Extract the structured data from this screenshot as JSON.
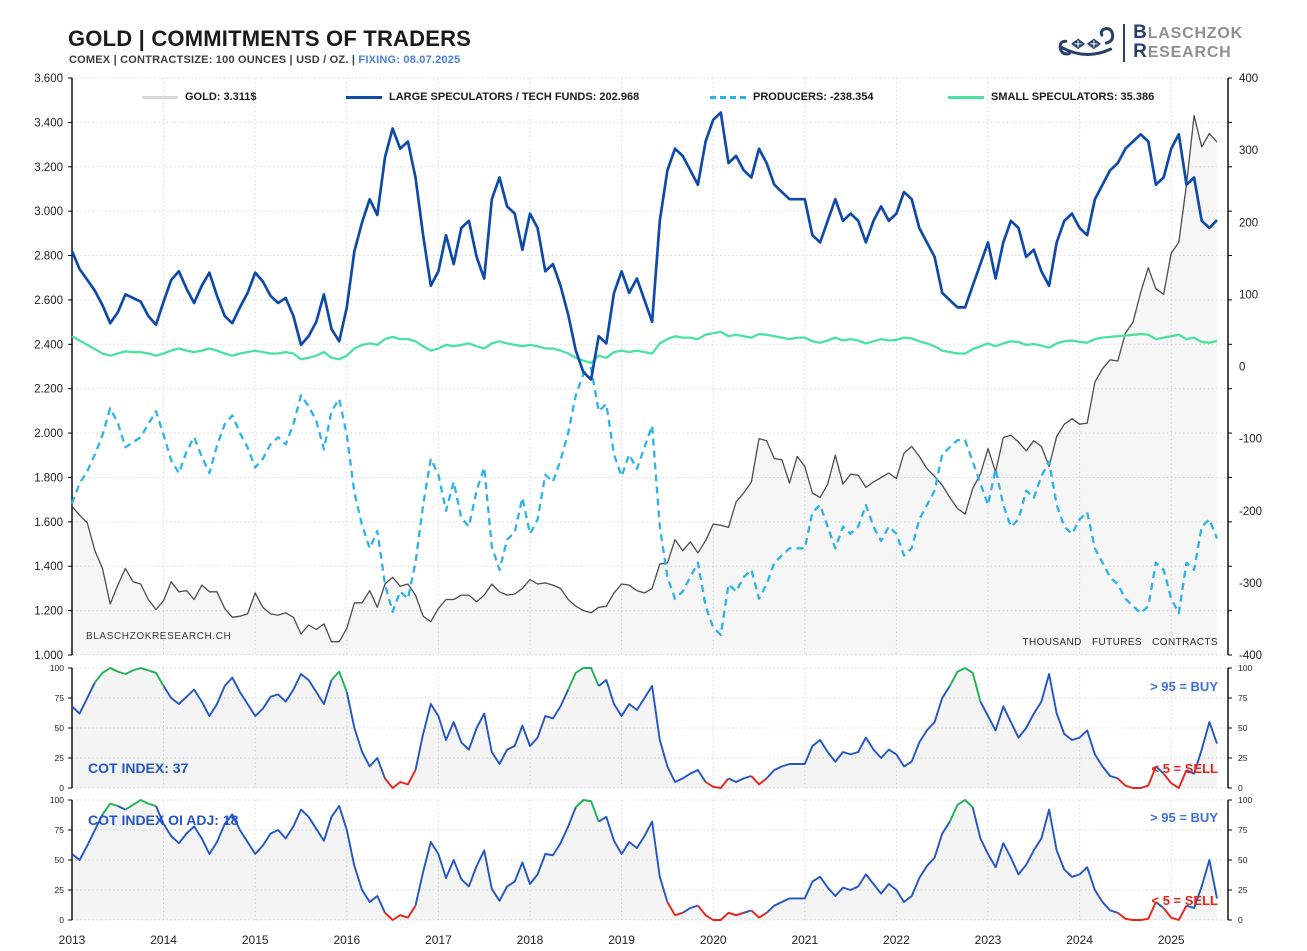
{
  "header": {
    "title": "GOLD | COMMITMENTS OF TRADERS",
    "subtitle": "COMEX | CONTRACTSIZE: 100 OUNCES | USD / OZ. |",
    "fixing": "FIXING: 08.07.2025",
    "logo_line1": "LASCHZOK",
    "logo_line2": "ESEARCH",
    "logo_init1": "B",
    "logo_init2": "R"
  },
  "colors": {
    "large_specs_blue": "#0f4aa8",
    "producers_cyan": "#2cb3ea",
    "small_specs_green": "#4ae2a2",
    "gold_grey": "#4d4d4d",
    "gold_legend_swatch": "#d8d8d8",
    "cot_blue": "#2256c3",
    "cot_green": "#1fb254",
    "cot_red": "#e8231a",
    "fixing_blue": "#4a7ce0",
    "logo_navy": "#27406e"
  },
  "legend": [
    {
      "label": "GOLD: 3.311$",
      "color": "#d8d8d8",
      "style": "solid"
    },
    {
      "label": "LARGE SPECULATORS / TECH FUNDS: 202.968",
      "color": "#0f4aa8",
      "style": "solid"
    },
    {
      "label": "PRODUCERS: -238.354",
      "color": "#2cb3ea",
      "style": "dashed"
    },
    {
      "label": "SMALL SPECULATORS: 35.386",
      "color": "#4ae2a2",
      "style": "solid"
    }
  ],
  "annotations": {
    "watermark": "BLASCHZOKRESEARCH.CH",
    "right_units": "THOUSAND FUTURES CONTRACTS",
    "cot1_label": "COT INDEX: 37",
    "cot2_label": "COT INDEX OI ADJ: 18",
    "buy_rule": "> 95 = BUY",
    "sell_rule": "< 5 = SELL"
  },
  "axes": {
    "x_years": [
      "2013",
      "2014",
      "2015",
      "2016",
      "2017",
      "2018",
      "2019",
      "2020",
      "2021",
      "2022",
      "2023",
      "2024",
      "2025"
    ],
    "main_left_ticks": [
      "3.600",
      "3.400",
      "3.200",
      "3.000",
      "2.800",
      "2.600",
      "2.400",
      "2.200",
      "2.000",
      "1.800",
      "1.600",
      "1.400",
      "1.200",
      "1.000"
    ],
    "main_right_ticks": [
      "400",
      "300",
      "200",
      "100",
      "0",
      "-100",
      "-200",
      "-300",
      "-400"
    ],
    "cot_ticks": [
      "100",
      "75",
      "50",
      "25",
      "0"
    ]
  },
  "chart_data": {
    "type": "line",
    "title": "GOLD | COMMITMENTS OF TRADERS",
    "x_start": 2013.0,
    "x_step": 0.0833333,
    "x_end": 2025.5,
    "x_tick_labels": [
      "2013",
      "2014",
      "2015",
      "2016",
      "2017",
      "2018",
      "2019",
      "2020",
      "2021",
      "2022",
      "2023",
      "2024",
      "2025"
    ],
    "grid": true,
    "legend_position": "top",
    "main": {
      "left_axis": {
        "label": "GOLD USD/OZ",
        "range": [
          1000,
          3600
        ],
        "tick_step": 200
      },
      "right_axis": {
        "label": "THOUSAND FUTURES CONTRACTS",
        "range": [
          -400,
          400
        ],
        "tick_step": 100
      },
      "series": [
        {
          "name": "GOLD",
          "axis": "left",
          "color": "#4d4d4d",
          "latest": 3311,
          "area_fill": true,
          "values": [
            1670,
            1630,
            1595,
            1470,
            1390,
            1230,
            1315,
            1390,
            1330,
            1320,
            1250,
            1205,
            1245,
            1330,
            1285,
            1290,
            1250,
            1315,
            1285,
            1285,
            1210,
            1170,
            1175,
            1185,
            1280,
            1215,
            1185,
            1180,
            1190,
            1170,
            1095,
            1135,
            1115,
            1140,
            1060,
            1060,
            1120,
            1235,
            1235,
            1290,
            1215,
            1320,
            1350,
            1310,
            1320,
            1270,
            1175,
            1150,
            1210,
            1250,
            1250,
            1270,
            1270,
            1240,
            1270,
            1320,
            1285,
            1270,
            1275,
            1300,
            1340,
            1320,
            1325,
            1315,
            1300,
            1250,
            1220,
            1200,
            1190,
            1215,
            1220,
            1280,
            1320,
            1315,
            1290,
            1280,
            1300,
            1410,
            1415,
            1520,
            1470,
            1510,
            1460,
            1515,
            1590,
            1585,
            1575,
            1690,
            1730,
            1780,
            1975,
            1965,
            1885,
            1880,
            1775,
            1895,
            1850,
            1730,
            1710,
            1770,
            1900,
            1770,
            1815,
            1810,
            1755,
            1780,
            1800,
            1820,
            1795,
            1910,
            1940,
            1895,
            1840,
            1805,
            1765,
            1710,
            1660,
            1635,
            1750,
            1815,
            1930,
            1825,
            1980,
            1990,
            1960,
            1920,
            1965,
            1940,
            1850,
            1985,
            2040,
            2065,
            2040,
            2045,
            2230,
            2290,
            2330,
            2325,
            2450,
            2500,
            2635,
            2745,
            2650,
            2625,
            2810,
            2860,
            3120,
            3430,
            3290,
            3350,
            3311
          ]
        },
        {
          "name": "LARGE SPECULATORS / TECH FUNDS",
          "axis": "right",
          "color": "#0f4aa8",
          "latest": 202.968,
          "values": [
            160,
            135,
            120,
            105,
            85,
            60,
            75,
            100,
            95,
            90,
            70,
            58,
            90,
            120,
            132,
            108,
            88,
            112,
            130,
            98,
            70,
            60,
            82,
            102,
            130,
            118,
            98,
            88,
            95,
            70,
            30,
            42,
            62,
            100,
            52,
            35,
            82,
            160,
            200,
            232,
            210,
            290,
            330,
            302,
            312,
            262,
            182,
            112,
            132,
            182,
            142,
            192,
            202,
            152,
            122,
            232,
            262,
            222,
            212,
            162,
            212,
            192,
            132,
            142,
            112,
            72,
            22,
            -8,
            -18,
            42,
            32,
            102,
            132,
            102,
            122,
            92,
            62,
            202,
            272,
            302,
            292,
            272,
            252,
            312,
            342,
            352,
            282,
            292,
            272,
            262,
            302,
            282,
            252,
            242,
            232,
            232,
            232,
            182,
            172,
            202,
            232,
            202,
            212,
            202,
            172,
            202,
            222,
            202,
            212,
            242,
            232,
            192,
            172,
            152,
            102,
            92,
            82,
            82,
            112,
            142,
            172,
            122,
            172,
            202,
            192,
            152,
            162,
            132,
            112,
            172,
            202,
            212,
            192,
            182,
            232,
            252,
            272,
            282,
            302,
            312,
            322,
            312,
            252,
            262,
            302,
            322,
            252,
            262,
            202,
            192,
            202.968
          ]
        },
        {
          "name": "PRODUCERS",
          "axis": "right",
          "color": "#2cb3ea",
          "dashed": true,
          "latest": -238.354,
          "values": [
            -190,
            -162,
            -145,
            -122,
            -95,
            -58,
            -78,
            -112,
            -105,
            -98,
            -80,
            -62,
            -95,
            -130,
            -148,
            -118,
            -98,
            -125,
            -148,
            -110,
            -80,
            -68,
            -92,
            -112,
            -140,
            -128,
            -108,
            -98,
            -108,
            -80,
            -40,
            -55,
            -75,
            -115,
            -62,
            -45,
            -95,
            -175,
            -220,
            -252,
            -228,
            -302,
            -340,
            -312,
            -322,
            -272,
            -192,
            -128,
            -150,
            -200,
            -160,
            -210,
            -222,
            -172,
            -140,
            -250,
            -282,
            -240,
            -230,
            -182,
            -232,
            -212,
            -150,
            -160,
            -130,
            -92,
            -40,
            -10,
            -2,
            -62,
            -52,
            -122,
            -152,
            -122,
            -142,
            -112,
            -82,
            -222,
            -292,
            -322,
            -312,
            -292,
            -272,
            -332,
            -362,
            -372,
            -302,
            -312,
            -292,
            -282,
            -322,
            -302,
            -272,
            -262,
            -252,
            -252,
            -252,
            -202,
            -192,
            -222,
            -252,
            -222,
            -232,
            -222,
            -192,
            -222,
            -242,
            -222,
            -232,
            -262,
            -252,
            -212,
            -192,
            -172,
            -122,
            -112,
            -102,
            -102,
            -132,
            -162,
            -192,
            -142,
            -192,
            -222,
            -212,
            -172,
            -182,
            -152,
            -132,
            -192,
            -222,
            -232,
            -212,
            -202,
            -252,
            -272,
            -292,
            -302,
            -322,
            -332,
            -342,
            -332,
            -272,
            -282,
            -322,
            -342,
            -272,
            -282,
            -222,
            -212,
            -238.354
          ]
        },
        {
          "name": "SMALL SPECULATORS",
          "axis": "right",
          "color": "#4ae2a2",
          "latest": 35.386,
          "values": [
            42,
            36,
            30,
            24,
            18,
            15,
            18,
            21,
            20,
            20,
            18,
            15,
            18,
            22,
            25,
            22,
            20,
            22,
            25,
            22,
            18,
            15,
            18,
            20,
            22,
            20,
            18,
            18,
            20,
            18,
            10,
            12,
            15,
            20,
            12,
            10,
            15,
            25,
            30,
            32,
            30,
            38,
            41,
            38,
            38,
            35,
            28,
            22,
            25,
            30,
            28,
            30,
            32,
            28,
            25,
            32,
            35,
            32,
            30,
            28,
            30,
            28,
            25,
            25,
            22,
            18,
            12,
            8,
            5,
            15,
            12,
            20,
            22,
            20,
            22,
            20,
            18,
            32,
            38,
            42,
            40,
            40,
            38,
            44,
            46,
            48,
            42,
            44,
            42,
            40,
            45,
            44,
            42,
            40,
            38,
            40,
            40,
            35,
            33,
            36,
            40,
            36,
            38,
            36,
            32,
            35,
            38,
            36,
            37,
            40,
            39,
            35,
            32,
            28,
            22,
            20,
            18,
            18,
            24,
            28,
            32,
            28,
            32,
            35,
            34,
            30,
            31,
            29,
            26,
            32,
            35,
            36,
            34,
            33,
            38,
            40,
            41,
            42,
            43,
            44,
            45,
            44,
            38,
            40,
            42,
            44,
            38,
            40,
            34,
            33,
            35.386
          ]
        }
      ]
    },
    "cot_index": {
      "label": "COT INDEX",
      "range": [
        0,
        100
      ],
      "latest": 37,
      "buy_above": 95,
      "sell_below": 5,
      "values": [
        68,
        62,
        75,
        88,
        96,
        100,
        97,
        95,
        98,
        100,
        98,
        96,
        85,
        75,
        70,
        76,
        82,
        72,
        60,
        70,
        85,
        92,
        80,
        70,
        60,
        66,
        76,
        78,
        72,
        82,
        95,
        90,
        80,
        70,
        90,
        97,
        80,
        50,
        30,
        18,
        25,
        8,
        0,
        5,
        3,
        15,
        45,
        70,
        60,
        40,
        55,
        38,
        32,
        50,
        62,
        30,
        20,
        32,
        35,
        52,
        35,
        42,
        60,
        58,
        68,
        82,
        96,
        100,
        100,
        85,
        90,
        70,
        60,
        70,
        65,
        75,
        85,
        40,
        18,
        5,
        8,
        12,
        15,
        5,
        1,
        0,
        8,
        5,
        8,
        10,
        3,
        8,
        15,
        18,
        20,
        20,
        20,
        35,
        40,
        30,
        22,
        30,
        28,
        30,
        42,
        32,
        25,
        32,
        28,
        18,
        22,
        38,
        48,
        55,
        75,
        85,
        97,
        100,
        96,
        72,
        60,
        48,
        68,
        55,
        42,
        50,
        62,
        72,
        95,
        62,
        45,
        40,
        42,
        48,
        28,
        18,
        10,
        8,
        2,
        0,
        0,
        2,
        18,
        12,
        4,
        0,
        15,
        12,
        32,
        55,
        37
      ]
    },
    "cot_index_oi_adj": {
      "label": "COT INDEX OI ADJ",
      "range": [
        0,
        100
      ],
      "latest": 18,
      "buy_above": 95,
      "sell_below": 5,
      "values": [
        55,
        50,
        62,
        75,
        88,
        97,
        95,
        92,
        96,
        100,
        97,
        95,
        80,
        70,
        64,
        72,
        78,
        68,
        55,
        65,
        80,
        88,
        75,
        65,
        55,
        62,
        72,
        75,
        68,
        78,
        92,
        86,
        76,
        66,
        86,
        95,
        75,
        45,
        25,
        15,
        20,
        6,
        0,
        4,
        2,
        12,
        40,
        65,
        55,
        35,
        50,
        34,
        28,
        45,
        58,
        26,
        16,
        28,
        32,
        48,
        30,
        38,
        55,
        54,
        64,
        78,
        94,
        100,
        99,
        82,
        86,
        66,
        55,
        65,
        60,
        70,
        82,
        36,
        15,
        4,
        6,
        10,
        12,
        4,
        0,
        0,
        6,
        4,
        6,
        8,
        2,
        6,
        12,
        15,
        18,
        18,
        18,
        32,
        36,
        27,
        20,
        27,
        25,
        28,
        38,
        30,
        22,
        30,
        25,
        15,
        20,
        35,
        45,
        52,
        72,
        82,
        96,
        100,
        94,
        68,
        55,
        44,
        64,
        52,
        38,
        46,
        58,
        68,
        92,
        58,
        42,
        36,
        38,
        44,
        25,
        15,
        8,
        6,
        1,
        0,
        0,
        1,
        15,
        10,
        2,
        0,
        12,
        10,
        28,
        50,
        18
      ]
    }
  }
}
